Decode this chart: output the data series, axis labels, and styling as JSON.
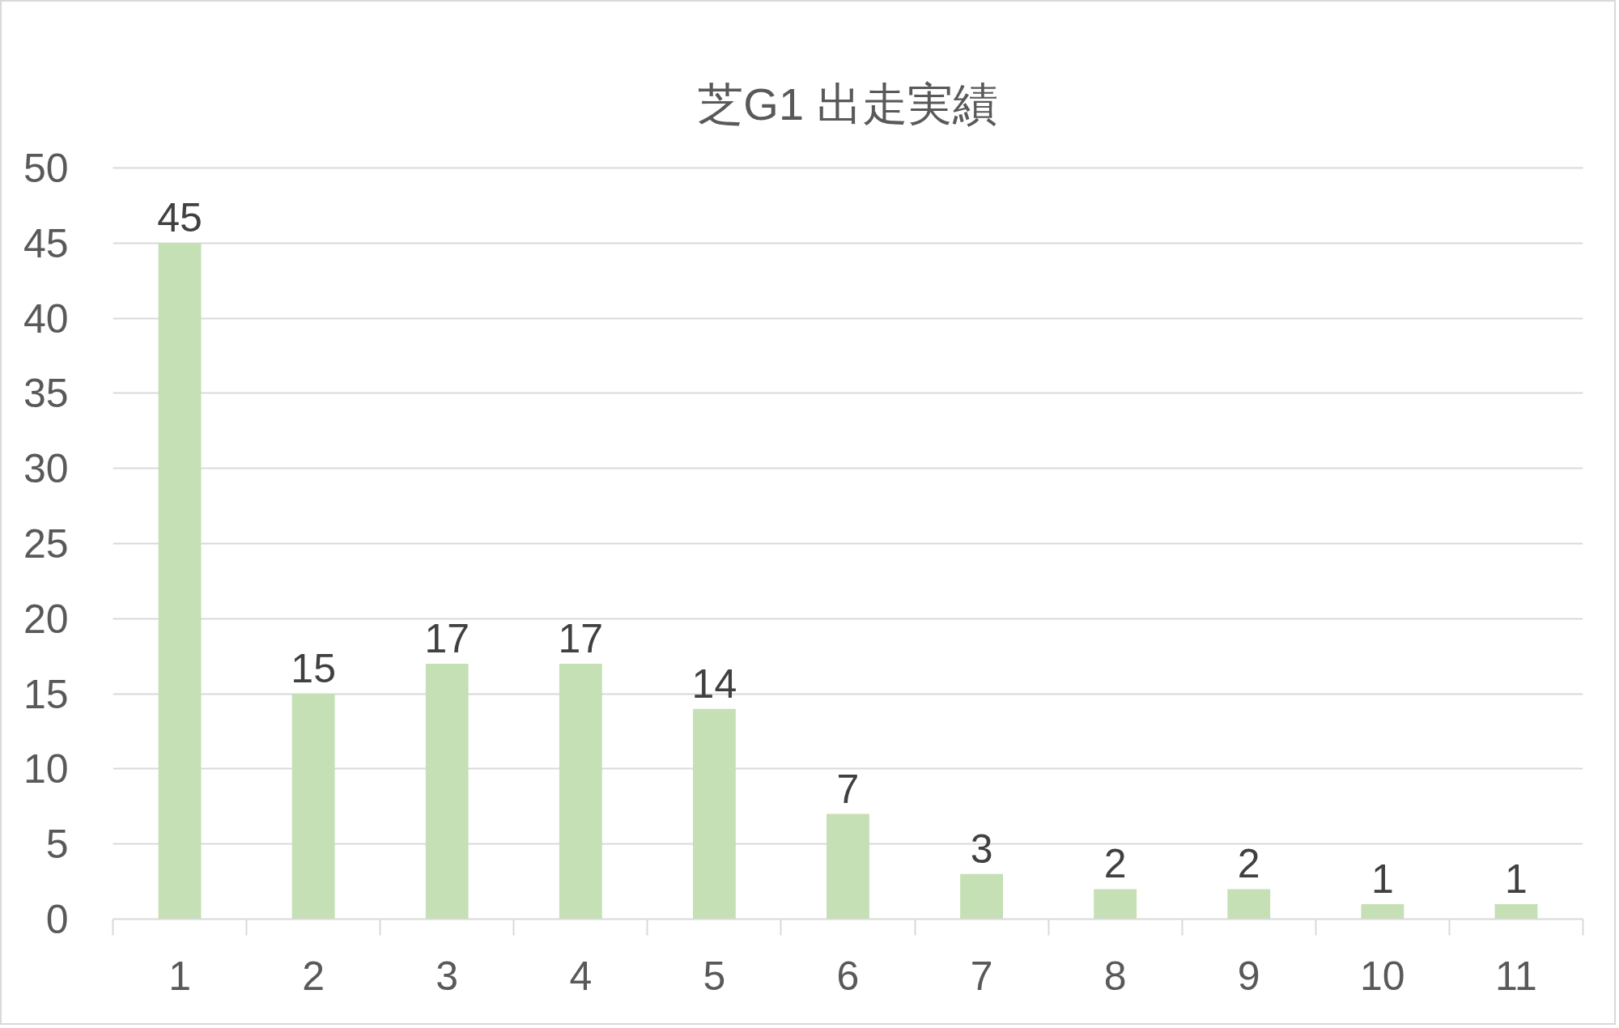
{
  "chart_data": {
    "type": "bar",
    "title": "芝G1 出走実績",
    "categories": [
      "1",
      "2",
      "3",
      "4",
      "5",
      "6",
      "7",
      "8",
      "9",
      "10",
      "11"
    ],
    "values": [
      45,
      15,
      17,
      17,
      14,
      7,
      3,
      2,
      2,
      1,
      1
    ],
    "color": "#c5e0b4",
    "ylim": [
      0,
      50
    ],
    "yticks": [
      0,
      5,
      10,
      15,
      20,
      25,
      30,
      35,
      40,
      45,
      50
    ],
    "grid": "y",
    "data_labels": true
  }
}
